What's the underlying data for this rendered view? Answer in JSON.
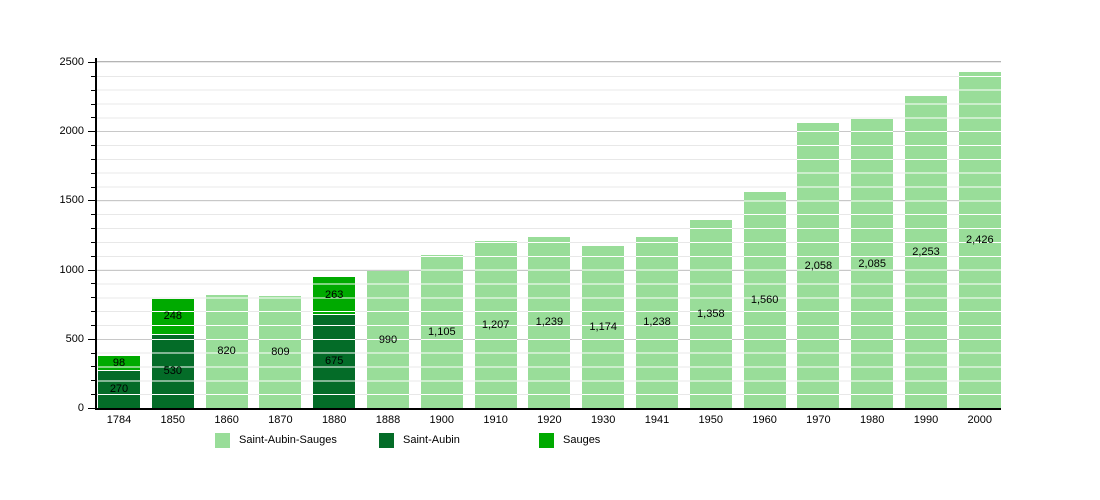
{
  "chart_data": {
    "type": "bar",
    "stacked": true,
    "title": "",
    "xlabel": "",
    "ylabel": "",
    "ylim": [
      0,
      2500
    ],
    "y_major_step": 500,
    "y_minor_step": 100,
    "y_tick_labels": [
      "0",
      "500",
      "1000",
      "1500",
      "2000",
      "2500"
    ],
    "grid": "minor horizontal lines every 100, major every 500, white gridline overlay on bars",
    "legend_position": "bottom",
    "categories": [
      "1784",
      "1850",
      "1860",
      "1870",
      "1880",
      "1888",
      "1900",
      "1910",
      "1920",
      "1930",
      "1941",
      "1950",
      "1960",
      "1970",
      "1980",
      "1990",
      "2000"
    ],
    "legend": [
      {
        "name": "Saint-Aubin-Sauges",
        "color": "#99DD99"
      },
      {
        "name": "Saint-Aubin",
        "color": "#046C28"
      },
      {
        "name": "Sauges",
        "color": "#00AA00"
      }
    ],
    "bars": [
      {
        "year": "1784",
        "segments": [
          {
            "series": "Saint-Aubin",
            "value": 270,
            "label": "270"
          },
          {
            "series": "Sauges",
            "value": 98,
            "label": "98"
          }
        ]
      },
      {
        "year": "1850",
        "segments": [
          {
            "series": "Saint-Aubin",
            "value": 530,
            "label": "530"
          },
          {
            "series": "Sauges",
            "value": 248,
            "label": "248"
          }
        ]
      },
      {
        "year": "1860",
        "segments": [
          {
            "series": "Saint-Aubin-Sauges",
            "value": 820,
            "label": "820"
          }
        ]
      },
      {
        "year": "1870",
        "segments": [
          {
            "series": "Saint-Aubin-Sauges",
            "value": 809,
            "label": "809"
          }
        ]
      },
      {
        "year": "1880",
        "segments": [
          {
            "series": "Saint-Aubin",
            "value": 675,
            "label": "675"
          },
          {
            "series": "Sauges",
            "value": 263,
            "label": "263"
          }
        ]
      },
      {
        "year": "1888",
        "segments": [
          {
            "series": "Saint-Aubin-Sauges",
            "value": 990,
            "label": "990"
          }
        ]
      },
      {
        "year": "1900",
        "segments": [
          {
            "series": "Saint-Aubin-Sauges",
            "value": 1105,
            "label": "1,105"
          }
        ]
      },
      {
        "year": "1910",
        "segments": [
          {
            "series": "Saint-Aubin-Sauges",
            "value": 1207,
            "label": "1,207"
          }
        ]
      },
      {
        "year": "1920",
        "segments": [
          {
            "series": "Saint-Aubin-Sauges",
            "value": 1239,
            "label": "1,239"
          }
        ]
      },
      {
        "year": "1930",
        "segments": [
          {
            "series": "Saint-Aubin-Sauges",
            "value": 1174,
            "label": "1,174"
          }
        ]
      },
      {
        "year": "1941",
        "segments": [
          {
            "series": "Saint-Aubin-Sauges",
            "value": 1238,
            "label": "1,238"
          }
        ]
      },
      {
        "year": "1950",
        "segments": [
          {
            "series": "Saint-Aubin-Sauges",
            "value": 1358,
            "label": "1,358"
          }
        ]
      },
      {
        "year": "1960",
        "segments": [
          {
            "series": "Saint-Aubin-Sauges",
            "value": 1560,
            "label": "1,560"
          }
        ]
      },
      {
        "year": "1970",
        "segments": [
          {
            "series": "Saint-Aubin-Sauges",
            "value": 2058,
            "label": "2,058"
          }
        ]
      },
      {
        "year": "1980",
        "segments": [
          {
            "series": "Saint-Aubin-Sauges",
            "value": 2085,
            "label": "2,085"
          }
        ]
      },
      {
        "year": "1990",
        "segments": [
          {
            "series": "Saint-Aubin-Sauges",
            "value": 2253,
            "label": "2,253"
          }
        ]
      },
      {
        "year": "2000",
        "segments": [
          {
            "series": "Saint-Aubin-Sauges",
            "value": 2426,
            "label": "2,426"
          }
        ]
      }
    ],
    "colors": {
      "background": "#ffffff",
      "grid_minor": "#e8e8e8",
      "grid_major": "#c8c8c8",
      "plot_top_line": "#b4b4b4",
      "axis": "#000000",
      "bar_gridline_overlay": "#ffffff",
      "text": "#000000"
    }
  }
}
